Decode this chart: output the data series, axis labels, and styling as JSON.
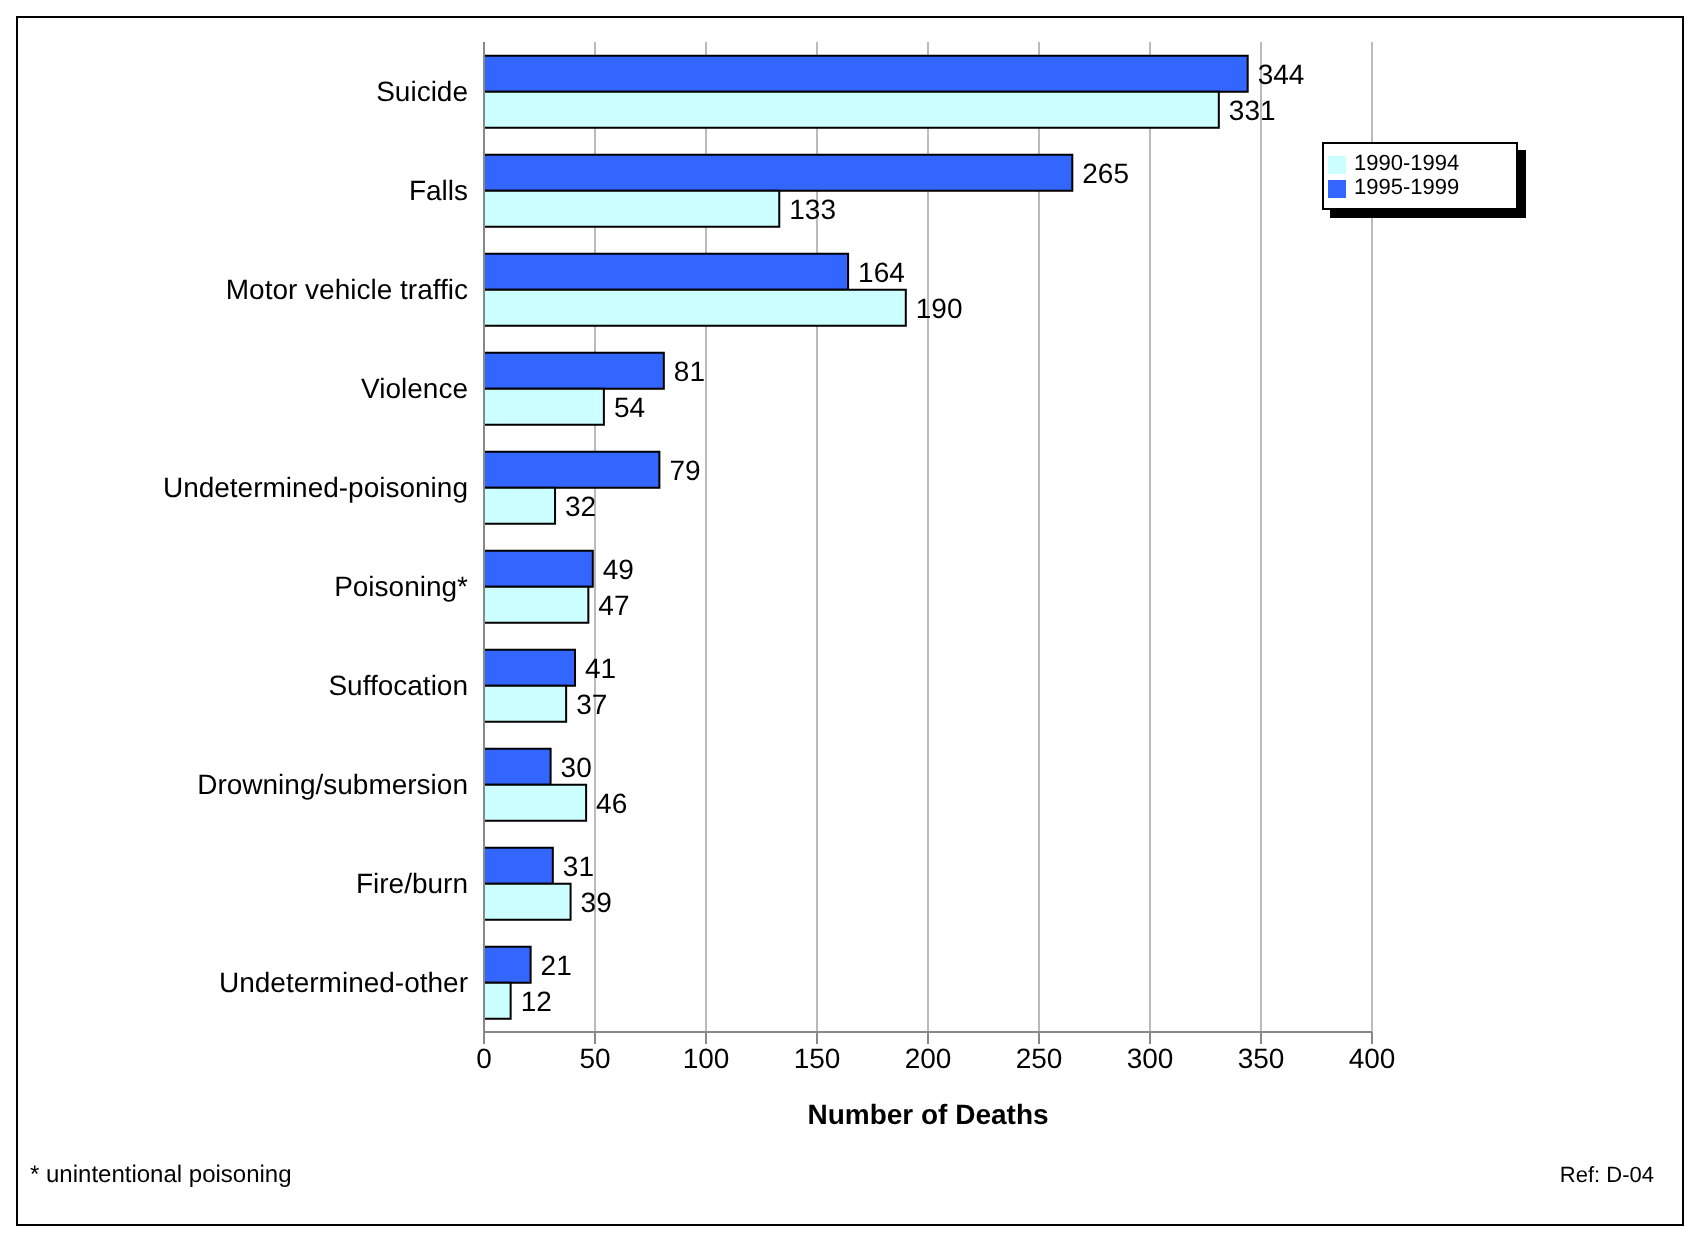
{
  "chart_data": {
    "type": "bar",
    "orientation": "horizontal",
    "xlabel": "Number of Deaths",
    "categories": [
      "Suicide",
      "Falls",
      "Motor vehicle traffic",
      "Violence",
      "Undetermined-poisoning",
      "Poisoning*",
      "Suffocation",
      "Drowning/submersion",
      "Fire/burn",
      "Undetermined-other"
    ],
    "series": [
      {
        "name": "1995-1999",
        "color": "#3366ff",
        "values": [
          344,
          265,
          164,
          81,
          79,
          49,
          41,
          30,
          31,
          21
        ]
      },
      {
        "name": "1990-1994",
        "color": "#ccffff",
        "values": [
          331,
          133,
          190,
          54,
          32,
          47,
          37,
          46,
          39,
          12
        ]
      }
    ],
    "xlim": [
      0,
      400
    ],
    "xticks": [
      0,
      50,
      100,
      150,
      200,
      250,
      300,
      350,
      400
    ],
    "grid": "x",
    "legend": "top right",
    "data_labels": true,
    "annotations": [
      "* unintentional poisoning",
      "Ref: D-04"
    ]
  }
}
